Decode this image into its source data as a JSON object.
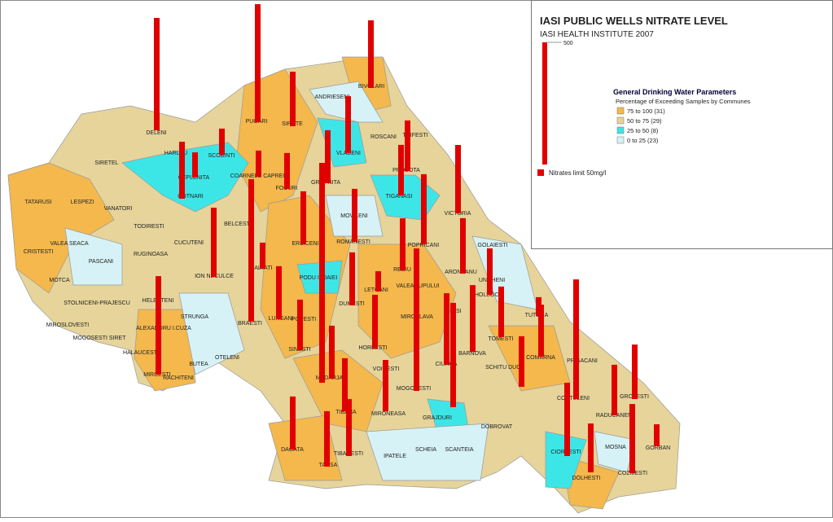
{
  "map_data": {
    "title": "IASI PUBLIC WELLS  NITRATE LEVEL",
    "subtitle": "IASI HEALTH INSTITUTE 2007",
    "scale_value": 500,
    "well_color": "#e00000",
    "legend": {
      "title": "General Drinking Water Parameters",
      "subtitle": "Percentage of Exceeding Samples by Communes",
      "classes": [
        {
          "label": "75 to 100  (31)",
          "color": "#f4b84c"
        },
        {
          "label": "50 to  75  (29)",
          "color": "#e6d49a"
        },
        {
          "label": "25 to  50    (8)",
          "color": "#3de6e6"
        },
        {
          "label": "0 to  25  (23)",
          "color": "#d6f2f6"
        }
      ],
      "limit_label": "Nitrates limit 50mg/l"
    },
    "communes": [
      "DELENI",
      "HARLAU",
      "SCOBINTI",
      "SIRETEL",
      "TATARUSI",
      "LESPEZI",
      "VANATORI",
      "COTNARI",
      "CEPLENITA",
      "COARNELE CAPREI",
      "FOCURI",
      "GROPNITA",
      "PUGARI",
      "SIPOTE",
      "ANDRIESENI",
      "BIVOLARI",
      "ROSCANI",
      "TRIFESTI",
      "VLADENI",
      "PROBOTA",
      "TIGANASI",
      "MOVILENI",
      "VICTORIA",
      "TODIRESTI",
      "VALEA SEACA",
      "CRISTESTI",
      "PASCANI",
      "RUGINOASA",
      "CUCUTENI",
      "BELCESTI",
      "ERBICENI",
      "ROMANESTI",
      "POPRICANI",
      "GOLAIESTI",
      "ION NECULCE",
      "BALTATI",
      "PODU ILOAIEI",
      "LETCANI",
      "REDIU",
      "ARONEANU",
      "MOTCA",
      "HELESTENI",
      "STOLNICENI-PRAJESCU",
      "UNGHENI",
      "VALEA LUPULUI",
      "STRUNGA",
      "MIROSLOVESTI",
      "ALEXANDRU I.CUZA",
      "TUTORA",
      "HOLBOCA",
      "LUNGANI",
      "DUMESTI",
      "POPESTI",
      "MIROSLAVA",
      "IASI",
      "BRAESTI",
      "MOGOSESTI SIRET",
      "TOMESTI",
      "HALAUCESTI",
      "HORLESTI",
      "SINESTI",
      "BARNOVA",
      "COMARNA",
      "PRISACANI",
      "BUTEA",
      "OTELENI",
      "MIRCESTI",
      "RACHITENI",
      "MADARJAC",
      "VOINESTI",
      "CIURCA",
      "SCHITU DUCA",
      "COSTULENI",
      "GROZESTI",
      "MOGOSESTI",
      "TIBANA",
      "MIRONEASA",
      "GRAJDURI",
      "DOBROVAT",
      "RADUCANENI",
      "DAGATA",
      "TANSA",
      "TIBANESTI",
      "IPATELE",
      "SCHEIA",
      "SCANTEIA",
      "CIORTESTI",
      "MOSNA",
      "GORBAN",
      "DOLHESTI",
      "COZMESTI"
    ],
    "wells": [
      460,
      483,
      223,
      277,
      233,
      207,
      207,
      107,
      233,
      103,
      107,
      147,
      217,
      900,
      217,
      217,
      287,
      280,
      283,
      583,
      107,
      217,
      207,
      217,
      217,
      220,
      83,
      213,
      583,
      293,
      427,
      273,
      227,
      190,
      207,
      207,
      77,
      213,
      343,
      147,
      300,
      200,
      207,
      223,
      283,
      90,
      210,
      217,
      233,
      227,
      217,
      403
    ]
  }
}
